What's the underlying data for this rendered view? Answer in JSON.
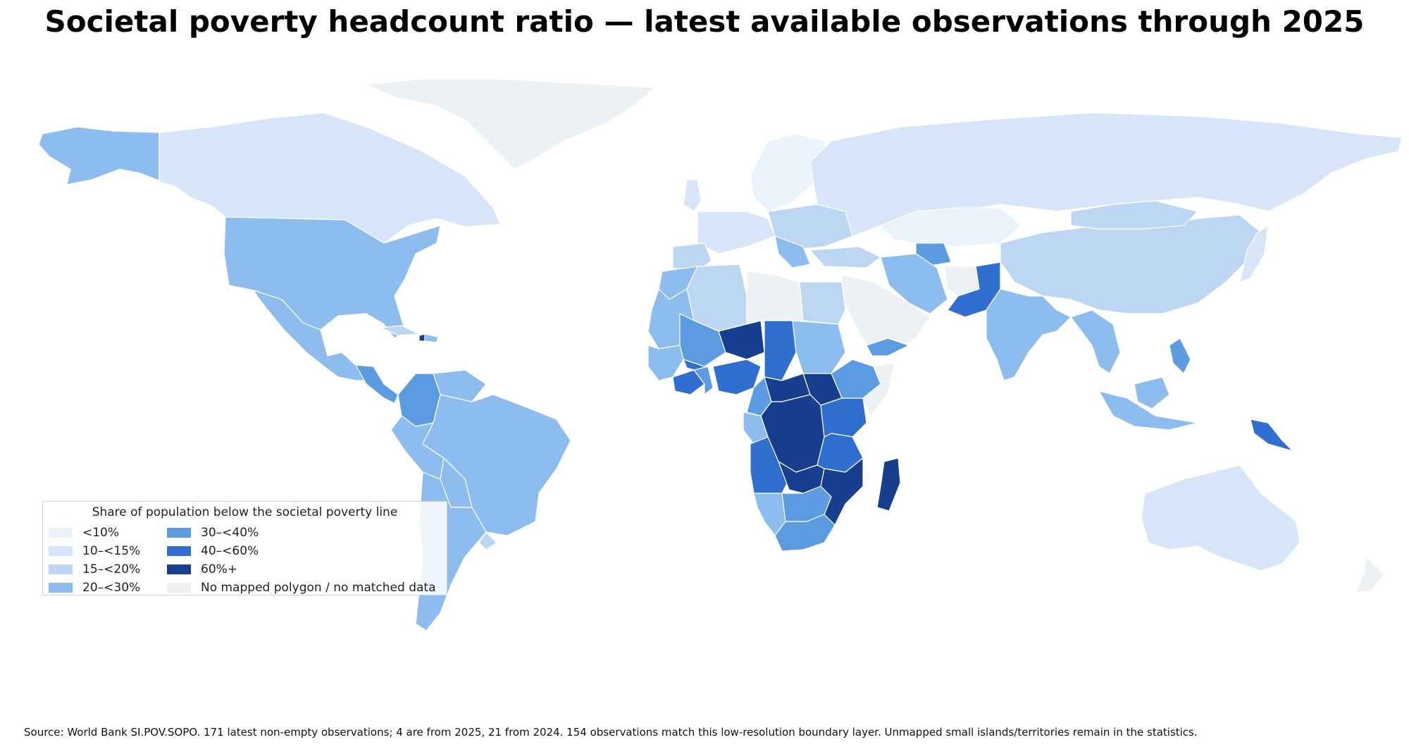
{
  "title": "Societal poverty headcount ratio — latest available observations through 2025",
  "legend": {
    "title": "Share of population below the societal poverty line",
    "items": [
      {
        "label": "<10%",
        "color": "#eaf3fc"
      },
      {
        "label": "10–<15%",
        "color": "#d6e6f8"
      },
      {
        "label": "15–<20%",
        "color": "#bdd7f3"
      },
      {
        "label": "20–<30%",
        "color": "#8dbcee"
      },
      {
        "label": "30–<40%",
        "color": "#5b9be2"
      },
      {
        "label": "40–<60%",
        "color": "#306fd0"
      },
      {
        "label": "60%+",
        "color": "#173e8f"
      },
      {
        "label": "No mapped polygon / no matched data",
        "color": "#eef1f4"
      }
    ]
  },
  "source": "Source: World Bank SI.POV.SOPO. 171 latest non-empty observations; 4 are from 2025, 21 from 2024. 154 observations match this low-resolution boundary layer. Unmapped small islands/territories remain in the statistics."
}
